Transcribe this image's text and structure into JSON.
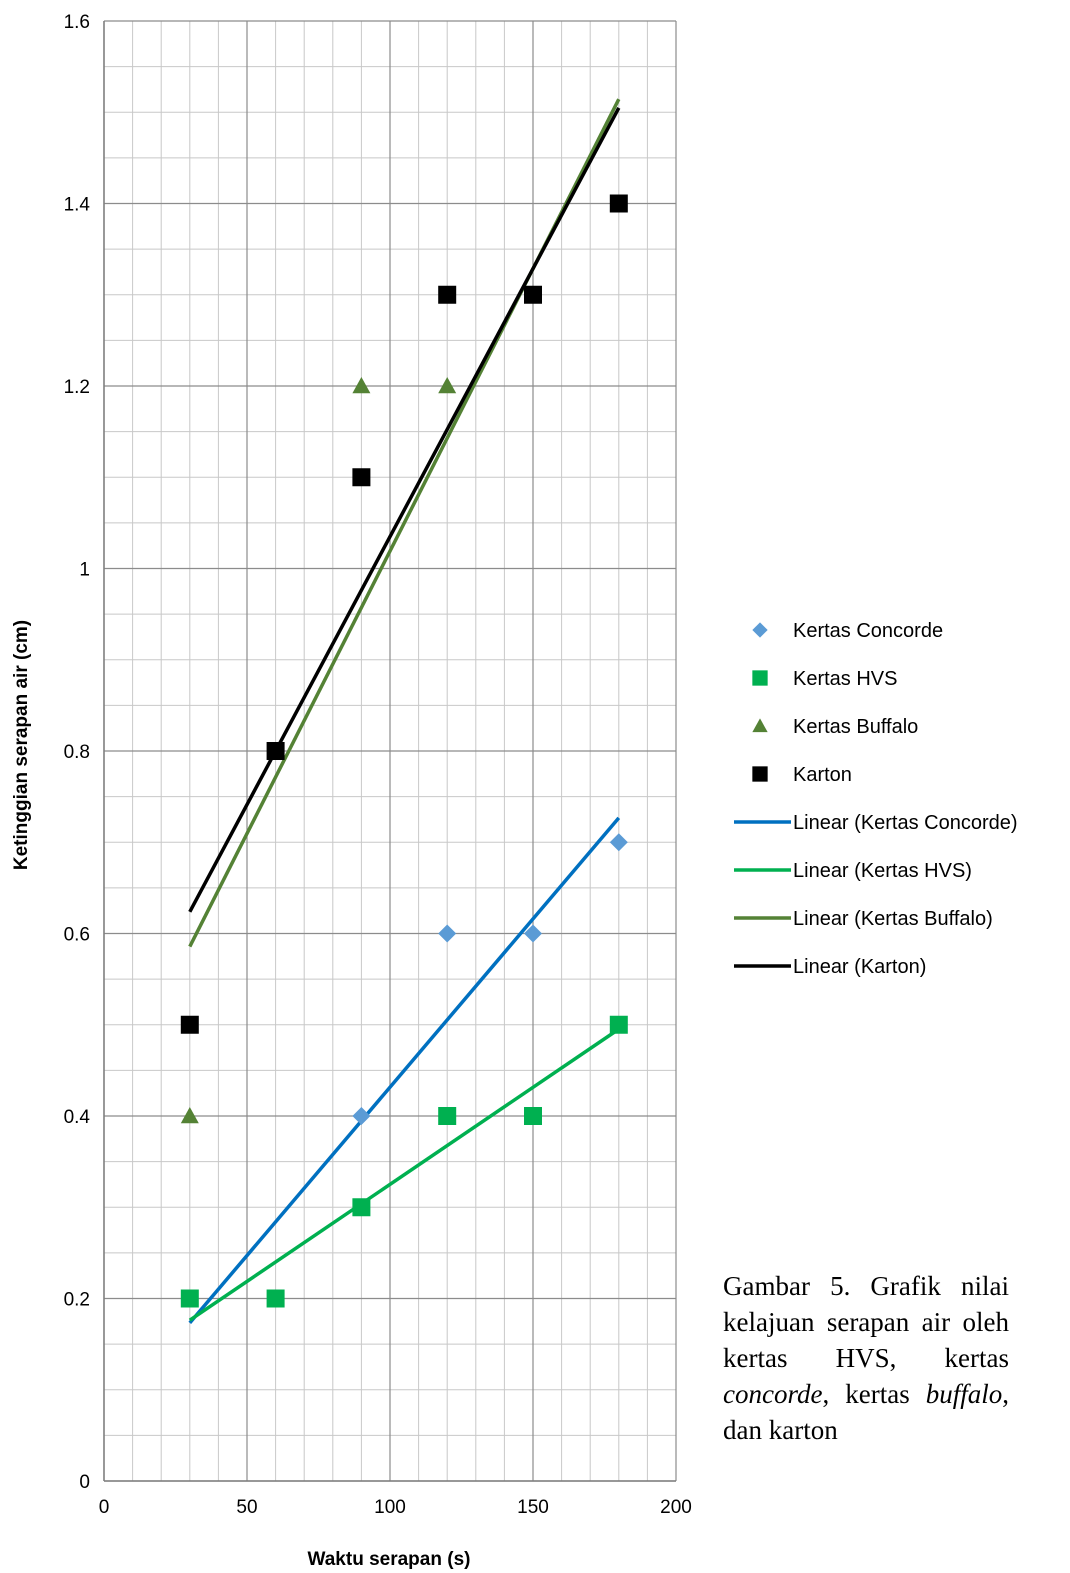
{
  "chart_data": {
    "type": "scatter",
    "title": "",
    "xlabel": "Waktu serapan (s)",
    "ylabel": "Ketinggian serapan air (cm)",
    "xlim": [
      0,
      200
    ],
    "ylim": [
      0,
      1.6
    ],
    "x_ticks": [
      "0",
      "50",
      "100",
      "150",
      "200"
    ],
    "y_ticks": [
      "0",
      "0.2",
      "0.4",
      "0.6",
      "0.8",
      "1",
      "1.2",
      "1.4",
      "1.6"
    ],
    "grid": true,
    "legend_position": "right",
    "series": [
      {
        "name": "Kertas Concorde",
        "marker": "diamond",
        "color": "#5b9bd5",
        "x": [
          30,
          60,
          90,
          120,
          150,
          180
        ],
        "y": [
          0.2,
          0.2,
          0.4,
          0.6,
          0.6,
          0.7
        ]
      },
      {
        "name": "Kertas HVS",
        "marker": "square",
        "color": "#00b050",
        "x": [
          30,
          60,
          90,
          120,
          150,
          180
        ],
        "y": [
          0.2,
          0.2,
          0.3,
          0.4,
          0.4,
          0.5
        ]
      },
      {
        "name": "Kertas Buffalo",
        "marker": "triangle",
        "color": "#548235",
        "x": [
          30,
          60,
          90,
          120,
          150,
          180
        ],
        "y": [
          0.4,
          0.8,
          1.2,
          1.2,
          1.3,
          1.4
        ]
      },
      {
        "name": "Karton",
        "marker": "square",
        "color": "#000000",
        "x": [
          30,
          60,
          90,
          120,
          150,
          180
        ],
        "y": [
          0.5,
          0.8,
          1.1,
          1.3,
          1.3,
          1.4
        ]
      }
    ],
    "trendlines": [
      {
        "name": "Linear (Kertas Concorde)",
        "color": "#0070c0",
        "x": [
          30,
          180
        ],
        "y": [
          0.1733,
          0.7267
        ]
      },
      {
        "name": "Linear (Kertas HVS)",
        "color": "#00b050",
        "x": [
          30,
          180
        ],
        "y": [
          0.1762,
          0.4952
        ]
      },
      {
        "name": "Linear (Kertas Buffalo)",
        "color": "#548235",
        "x": [
          30,
          180
        ],
        "y": [
          0.5857,
          1.5143
        ]
      },
      {
        "name": "Linear (Karton)",
        "color": "#000000",
        "x": [
          30,
          180
        ],
        "y": [
          0.6238,
          1.5048
        ]
      }
    ]
  },
  "caption": {
    "part1": "Gambar 5. Grafik nilai kelajuan serapan air oleh kertas HVS, kertas ",
    "word_concorde": "concorde",
    "part2": ", kertas ",
    "word_buffalo": "buffalo",
    "part3": ", dan karton"
  }
}
